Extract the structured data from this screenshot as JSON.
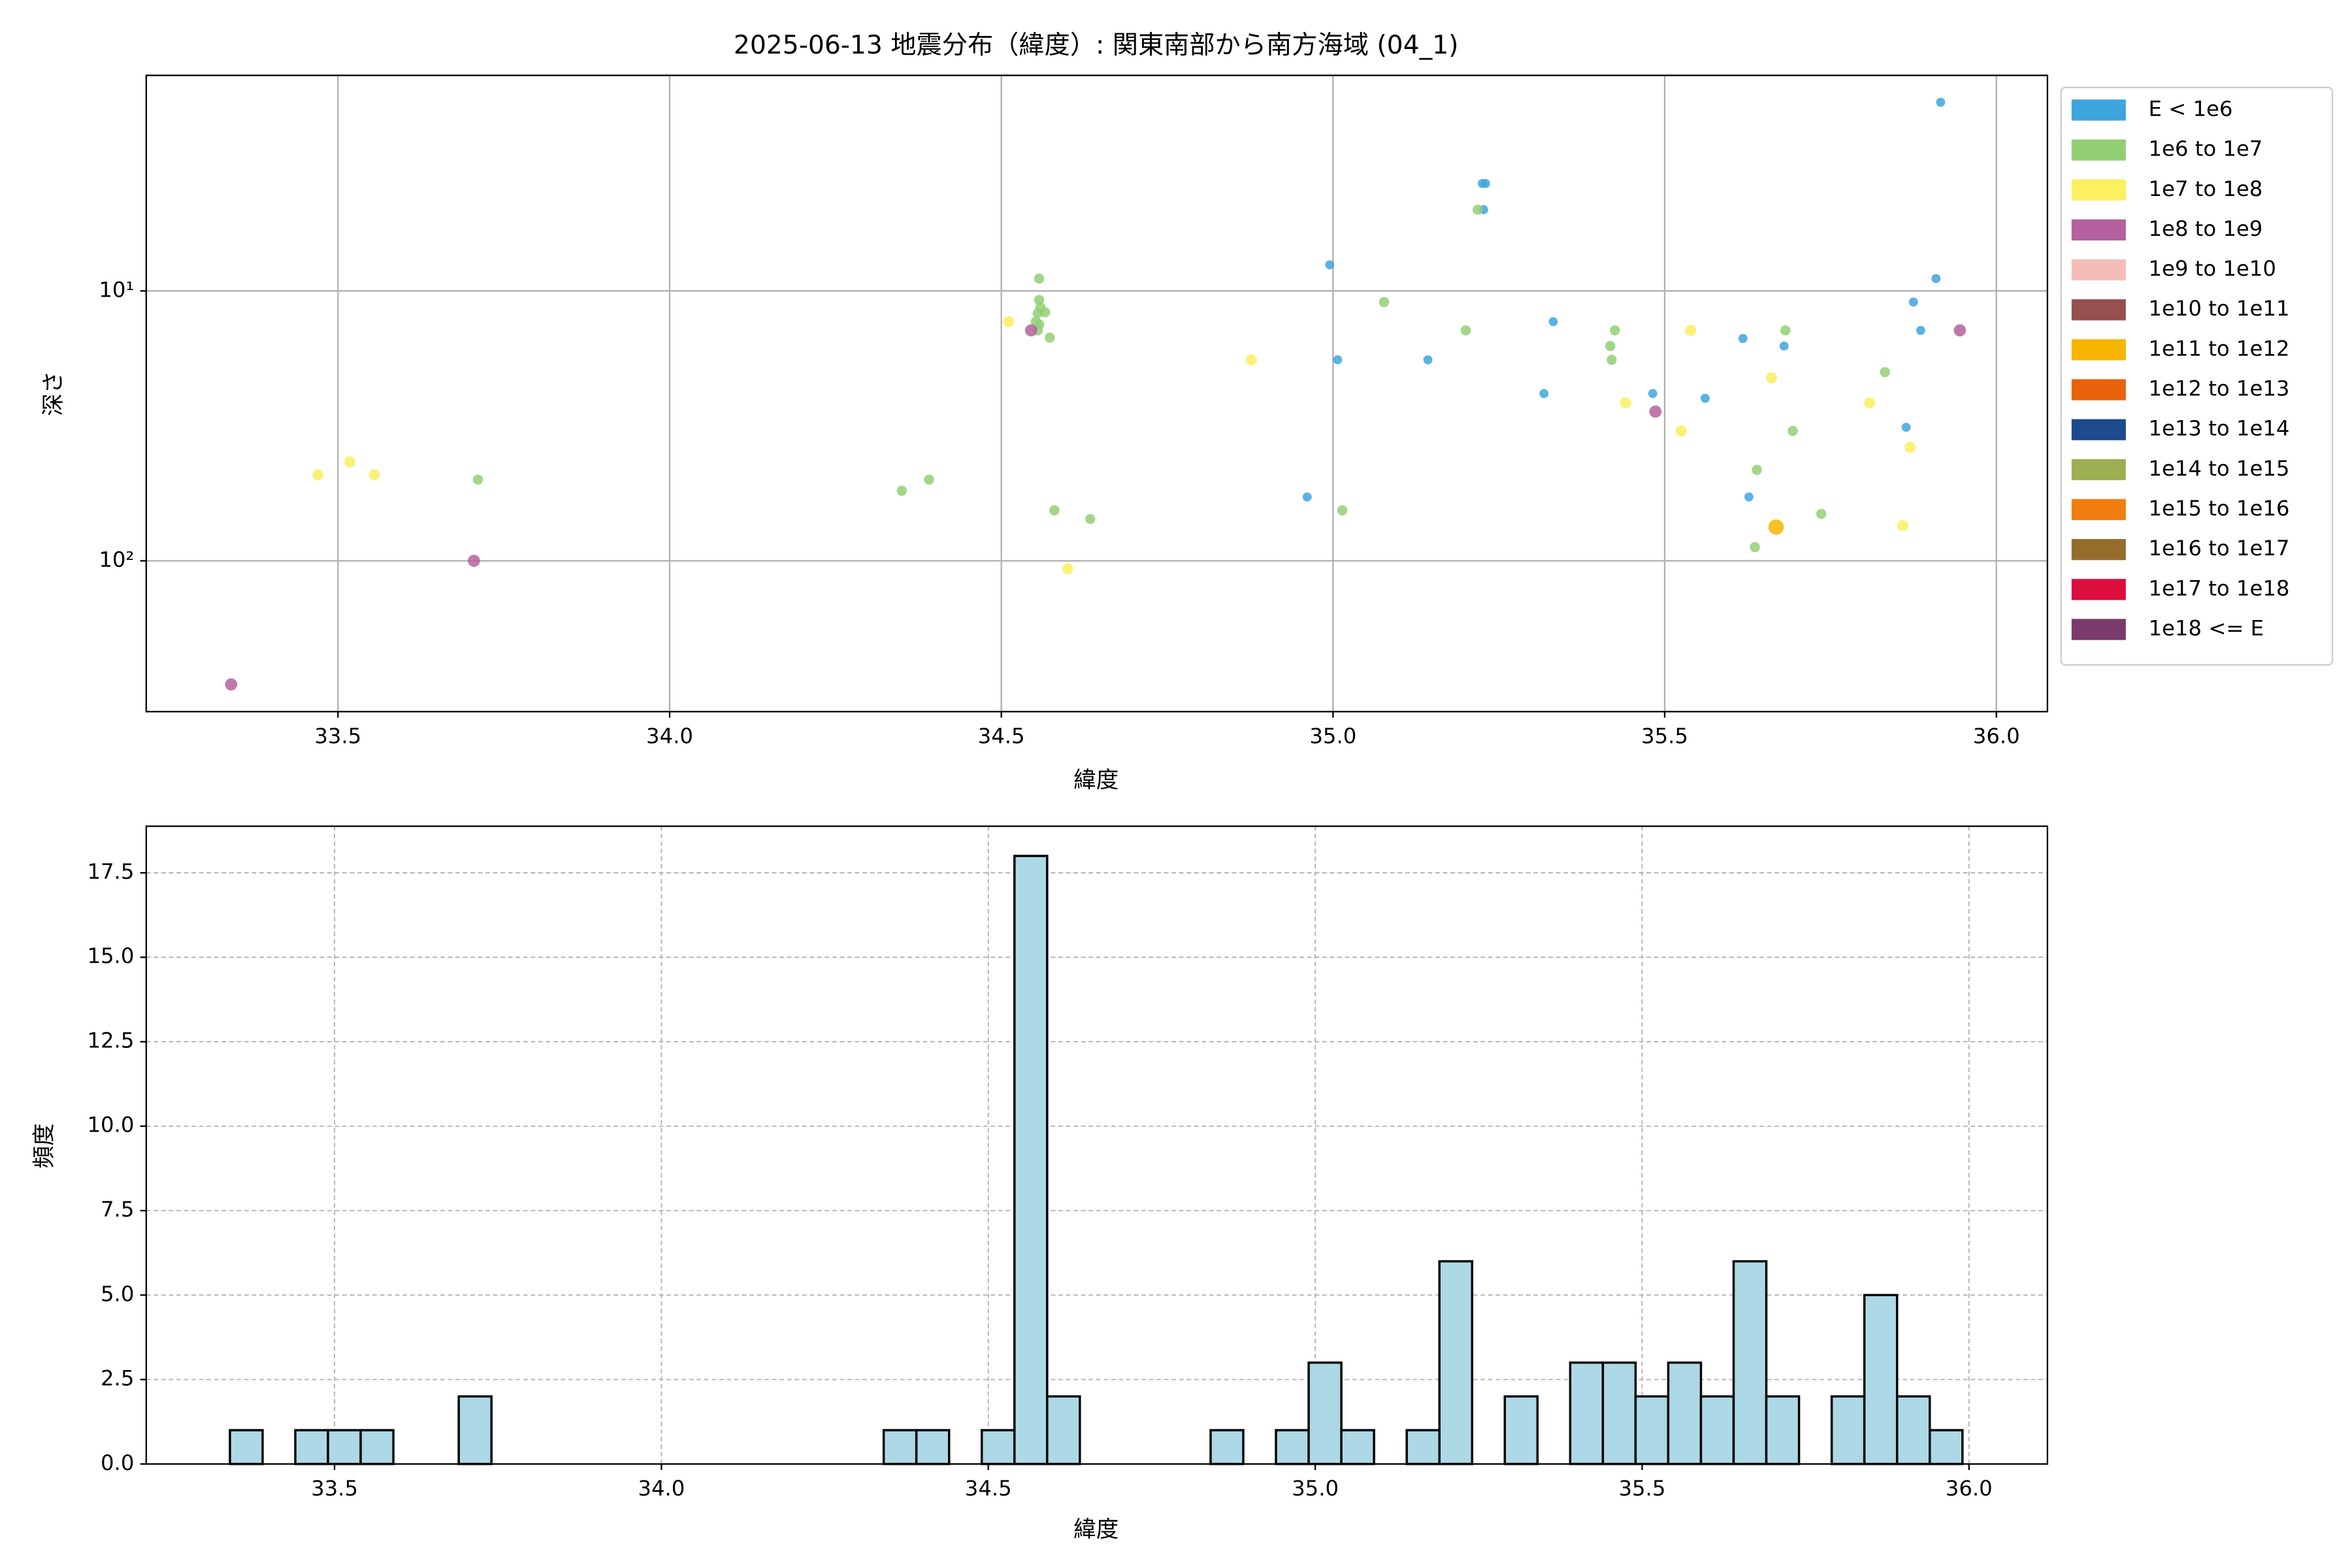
{
  "chart_data": [
    {
      "type": "scatter",
      "title": "2025-06-13 地震分布（緯度）: 関東南部から南方海域 (04_1)",
      "x_label": "緯度",
      "y_label": "深さ",
      "xlim": [
        33.211,
        36.077
      ],
      "ylim": [
        1.59,
        362
      ],
      "log_y": true,
      "y_inverted": true,
      "grid": true,
      "legend": "outside upper right",
      "xticks": [
        33.5,
        {
          "value": 34.0,
          "label": "34.0"
        },
        34.5,
        {
          "value": 35.0,
          "label": "35.0"
        },
        35.5,
        {
          "value": 36.0,
          "label": "36.0"
        }
      ],
      "yticks": [
        {
          "value": 10,
          "label": "10¹"
        },
        {
          "value": 100,
          "label": "10²"
        }
      ],
      "series": [
        {
          "name": "E < 1e6",
          "color": "#3ea4de",
          "x": [
            35.916,
            35.225,
            35.23,
            35.227,
            34.995,
            35.909,
            35.875,
            35.332,
            35.886,
            35.007,
            35.143,
            35.618,
            35.68,
            35.318,
            35.482,
            35.561,
            35.864,
            34.961,
            35.627
          ],
          "values": [
            2.0,
            4.0,
            4.0,
            5.0,
            8.0,
            9.0,
            11,
            13,
            14,
            18,
            18,
            15,
            16,
            24,
            24,
            25,
            32,
            58,
            58
          ]
        },
        {
          "name": "1e6 to 1e7",
          "color": "#92cf74",
          "x": [
            34.557,
            34.557,
            34.559,
            34.555,
            34.566,
            34.552,
            34.557,
            34.555,
            34.573,
            35.077,
            35.2,
            35.425,
            35.682,
            35.418,
            35.42,
            35.832,
            35.218,
            35.693,
            35.639,
            33.711,
            34.391,
            34.35,
            34.58,
            35.014,
            34.634,
            35.736,
            35.636
          ],
          "values": [
            9,
            10.8,
            11.5,
            12.1,
            12,
            13,
            13.3,
            14,
            14.9,
            11,
            14,
            14,
            14,
            16,
            18,
            20,
            5,
            33,
            46,
            50,
            50,
            55,
            65,
            65,
            70,
            67,
            89
          ]
        },
        {
          "name": "1e7 to 1e8",
          "color": "#fcef60",
          "x": [
            34.511,
            34.877,
            35.539,
            35.661,
            35.441,
            35.809,
            35.525,
            35.87,
            33.518,
            33.47,
            33.555,
            35.859,
            34.6
          ],
          "values": [
            13,
            18,
            14,
            21,
            26,
            26,
            33,
            38,
            43,
            48,
            48,
            74,
            107
          ]
        },
        {
          "name": "1e8 to 1e9",
          "color": "#b5619f",
          "x": [
            34.545,
            35.945,
            35.486,
            33.705,
            33.339
          ],
          "values": [
            14,
            14,
            28,
            100,
            287
          ]
        },
        {
          "name": "1e9 to 1e10",
          "color": "#f4bcb6",
          "x": [],
          "values": []
        },
        {
          "name": "1e10 to 1e11",
          "color": "#98504e",
          "x": [],
          "values": []
        },
        {
          "name": "1e11 to 1e12",
          "color": "#f7b500",
          "x": [
            35.668
          ],
          "values": [
            75
          ]
        },
        {
          "name": "1e12 to 1e13",
          "color": "#e8620b",
          "x": [],
          "values": []
        },
        {
          "name": "1e13 to 1e14",
          "color": "#1e4a8e",
          "x": [],
          "values": []
        },
        {
          "name": "1e14 to 1e15",
          "color": "#9caf52",
          "x": [],
          "values": []
        },
        {
          "name": "1e15 to 1e16",
          "color": "#f27e0f",
          "x": [],
          "values": []
        },
        {
          "name": "1e16 to 1e17",
          "color": "#966c2d",
          "x": [],
          "values": []
        },
        {
          "name": "1e17 to 1e18",
          "color": "#dc0e3b",
          "x": [],
          "values": []
        },
        {
          "name": "1e18 <= E",
          "color": "#7a3a6c",
          "x": [],
          "values": []
        }
      ]
    },
    {
      "type": "histogram",
      "x_label": "緯度",
      "y_label": "頻度",
      "xlim": [
        33.212,
        36.12
      ],
      "ylim": [
        0,
        18.88
      ],
      "grid": true,
      "grid_style": "dashed",
      "color": "#add8e6",
      "edge_color": "#000000",
      "xticks": [
        33.5,
        {
          "value": 34.0,
          "label": "34.0"
        },
        34.5,
        {
          "value": 35.0,
          "label": "35.0"
        },
        35.5,
        {
          "value": 36.0,
          "label": "36.0"
        }
      ],
      "yticks": [
        {
          "value": 0,
          "label": "0.0"
        },
        2.5,
        {
          "value": 5,
          "label": "5.0"
        },
        7.5,
        {
          "value": 10,
          "label": "10.0"
        },
        12.5,
        {
          "value": 15,
          "label": "15.0"
        },
        17.5
      ],
      "bins": [
        33.34,
        33.39,
        33.44,
        33.49,
        33.54,
        33.59,
        33.64,
        33.69,
        33.74,
        33.79,
        33.84,
        33.89,
        33.94,
        33.99,
        34.04,
        34.09,
        34.14,
        34.19,
        34.24,
        34.29,
        34.34,
        34.39,
        34.44,
        34.49,
        34.54,
        34.59,
        34.64,
        34.69,
        34.74,
        34.79,
        34.84,
        34.89,
        34.94,
        34.99,
        35.04,
        35.09,
        35.14,
        35.19,
        35.24,
        35.29,
        35.34,
        35.39,
        35.44,
        35.49,
        35.54,
        35.59,
        35.64,
        35.69,
        35.74,
        35.79,
        35.84,
        35.89,
        35.94,
        35.99
      ],
      "values": [
        1,
        0,
        1,
        1,
        1,
        0,
        0,
        2,
        0,
        0,
        0,
        0,
        0,
        0,
        0,
        0,
        0,
        0,
        0,
        0,
        1,
        1,
        0,
        1,
        18,
        2,
        0,
        0,
        0,
        0,
        1,
        0,
        1,
        3,
        1,
        0,
        1,
        6,
        0,
        2,
        0,
        3,
        3,
        2,
        3,
        2,
        6,
        2,
        0,
        2,
        5,
        2,
        1
      ]
    }
  ]
}
